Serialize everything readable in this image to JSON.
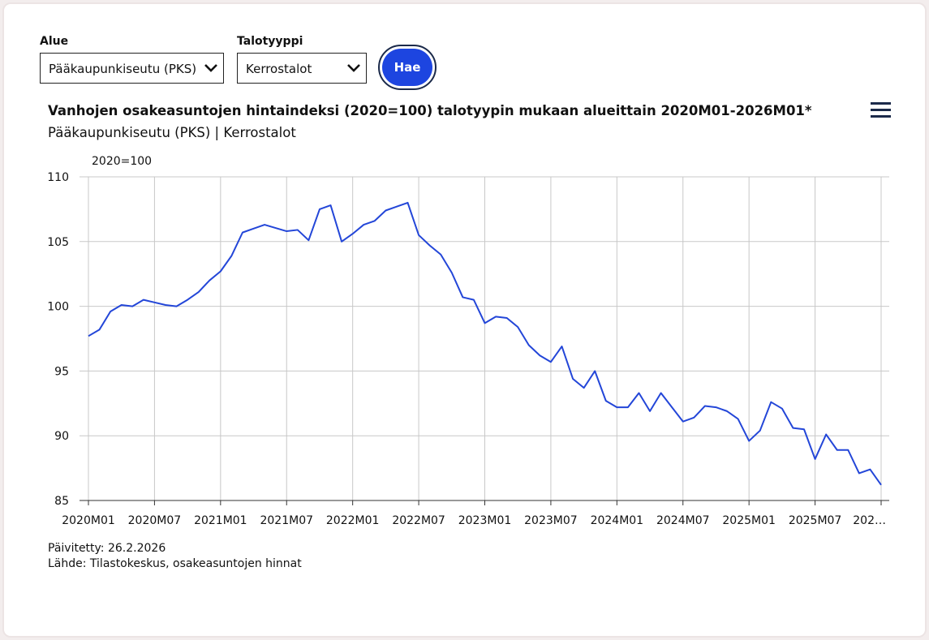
{
  "form": {
    "area_label": "Alue",
    "area_value": "Pääkaupunkiseutu (PKS)",
    "type_label": "Talotyyppi",
    "type_value": "Kerrostalot",
    "button": "Hae"
  },
  "chart_data": {
    "type": "line",
    "title": "Vanhojen osakeasuntojen hintaindeksi (2020=100) talotyypin mukaan alueittain 2020M01-2026M01*",
    "subtitle": "Pääkaupunkiseutu (PKS) | Kerrostalot",
    "y_label": "2020=100",
    "categories": [
      "2020M01",
      null,
      null,
      null,
      null,
      null,
      "2020M07",
      null,
      null,
      null,
      null,
      null,
      "2021M01",
      null,
      null,
      null,
      null,
      null,
      "2021M07",
      null,
      null,
      null,
      null,
      null,
      "2022M01",
      null,
      null,
      null,
      null,
      null,
      "2022M07",
      null,
      null,
      null,
      null,
      null,
      "2023M01",
      null,
      null,
      null,
      null,
      null,
      "2023M07",
      null,
      null,
      null,
      null,
      null,
      "2024M01",
      null,
      null,
      null,
      null,
      null,
      "2024M07",
      null,
      null,
      null,
      null,
      null,
      "2025M01",
      null,
      null,
      null,
      null,
      null,
      "2025M07",
      null,
      null,
      null,
      null,
      null,
      "202…"
    ],
    "values": [
      97.7,
      98.2,
      99.6,
      100.1,
      100.0,
      100.5,
      100.3,
      100.1,
      100.0,
      100.5,
      101.1,
      102.0,
      102.7,
      103.9,
      105.7,
      106.0,
      106.3,
      106.05,
      105.8,
      105.9,
      105.1,
      107.5,
      107.8,
      105.0,
      105.6,
      106.3,
      106.6,
      107.4,
      107.7,
      108.0,
      105.5,
      104.7,
      104.0,
      102.6,
      100.7,
      100.5,
      98.7,
      99.2,
      99.1,
      98.4,
      97.0,
      96.2,
      95.7,
      96.9,
      94.4,
      93.7,
      95.0,
      92.7,
      92.2,
      92.2,
      93.3,
      91.9,
      93.3,
      92.2,
      91.1,
      91.4,
      92.3,
      92.2,
      91.9,
      91.3,
      89.6,
      90.4,
      92.6,
      92.1,
      90.6,
      90.5,
      88.2,
      90.1,
      88.9,
      88.9,
      87.1,
      87.4,
      86.2
    ],
    "color": "#2346d8",
    "ylim": [
      85,
      110
    ],
    "yticks": [
      85,
      90,
      95,
      100,
      105,
      110
    ],
    "grid": true
  },
  "footer": {
    "updated": "Päivitetty: 26.2.2026",
    "source": "Lähde: Tilastokeskus, osakeasuntojen hinnat"
  }
}
